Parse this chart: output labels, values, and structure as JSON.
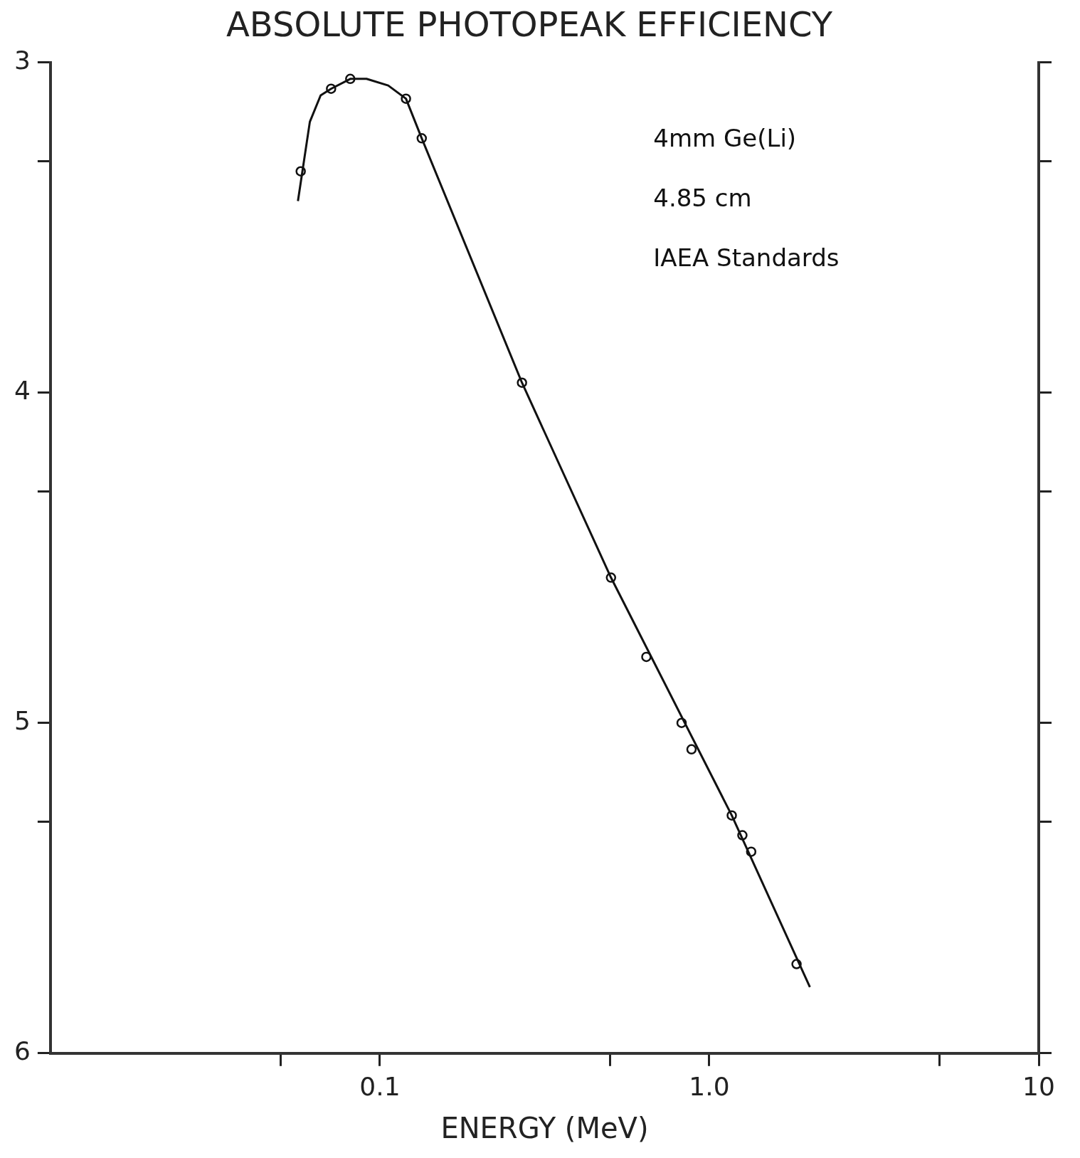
{
  "chart_data": {
    "type": "line",
    "title": "ABSOLUTE PHOTOPEAK EFFICIENCY",
    "xlabel": "ENERGY (MeV)",
    "annotations": [
      "4mm Ge(Li)",
      "4.85 cm",
      "IAEA Standards"
    ],
    "log": "x",
    "legend": false,
    "xlim": [
      0.01,
      10
    ],
    "xticks": [
      {
        "value": 0.05,
        "label": null
      },
      {
        "value": 0.1,
        "label": "0.1"
      },
      {
        "value": 0.5,
        "label": null
      },
      {
        "value": 1,
        "label": "1.0"
      },
      {
        "value": 5,
        "label": null
      },
      {
        "value": 10,
        "label": "10"
      }
    ],
    "ylim": [
      6,
      3
    ],
    "yticks": [
      3,
      {
        "value": 3.3,
        "label": null
      },
      4,
      {
        "value": 4.3,
        "label": null
      },
      5,
      {
        "value": 5.3,
        "label": null
      },
      6
    ],
    "series": [
      {
        "type": "line",
        "color": "#111111",
        "line_style": "solid",
        "marker": "none",
        "x": [
          0.0564,
          0.0613,
          0.0661,
          0.0711,
          0.0813,
          0.0911,
          0.106,
          0.12,
          0.134,
          0.27,
          0.503,
          1.17,
          2.02
        ],
        "values": [
          3.42,
          3.18,
          3.1,
          3.08,
          3.05,
          3.05,
          3.07,
          3.11,
          3.23,
          3.97,
          4.56,
          5.28,
          5.8
        ]
      },
      {
        "type": "scatter",
        "color": "#111111",
        "marker": "circle",
        "x": [
          0.0575,
          0.0711,
          0.0813,
          0.12,
          0.134,
          0.27,
          0.503,
          0.644,
          0.824,
          0.883,
          1.17,
          1.26,
          1.34,
          1.84
        ],
        "values": [
          3.33,
          3.08,
          3.05,
          3.11,
          3.23,
          3.97,
          4.56,
          4.8,
          5.0,
          5.08,
          5.28,
          5.34,
          5.39,
          5.73
        ]
      }
    ]
  }
}
